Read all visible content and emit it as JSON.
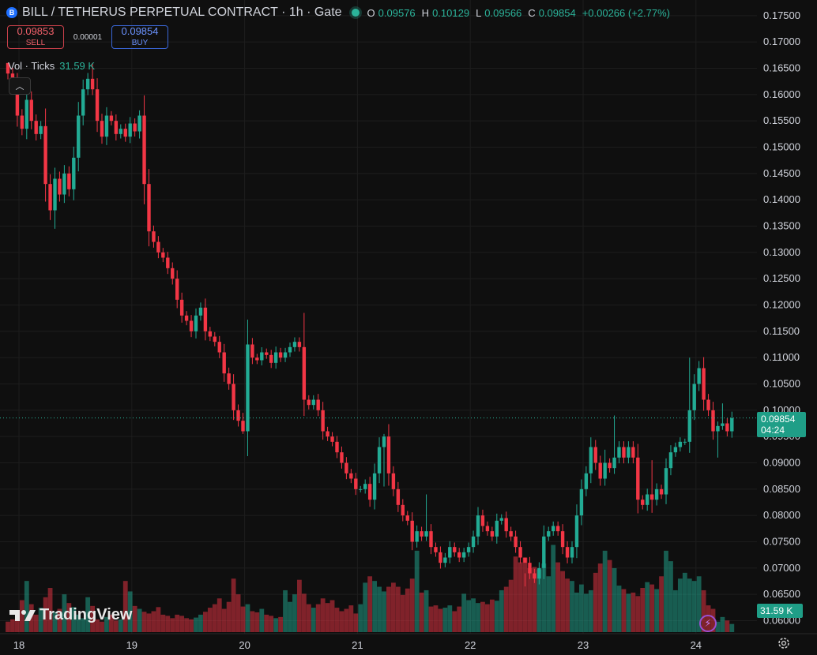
{
  "header": {
    "symbol_icon": "B",
    "title": "BILL / TETHERUS PERPETUAL CONTRACT · 1h · Gate",
    "ohlc": [
      {
        "key": "O",
        "value": "0.09576"
      },
      {
        "key": "H",
        "value": "0.10129"
      },
      {
        "key": "L",
        "value": "0.09566"
      },
      {
        "key": "C",
        "value": "0.09854"
      }
    ],
    "change": "+0.00266 (+2.77%)"
  },
  "trade": {
    "sell_price": "0.09853",
    "sell_label": "SELL",
    "spread": "0.00001",
    "buy_price": "0.09854",
    "buy_label": "BUY"
  },
  "volume_legend": {
    "label": "Vol · Ticks",
    "value": "31.59 K"
  },
  "last_price": {
    "price": "0.09854",
    "countdown": "04:24",
    "volume_tag": "31.59 K"
  },
  "logo_text": "TradingView",
  "colors": {
    "up": "#22ab94",
    "down": "#f23645",
    "background": "#0f0f0f",
    "grid": "#1d1d1d"
  },
  "chart_data": {
    "type": "candlestick",
    "symbol": "BILL / TETHERUS PERPETUAL CONTRACT",
    "interval": "1h",
    "exchange": "Gate",
    "x_ticks": [
      {
        "label": "18",
        "bar": 0
      },
      {
        "label": "19",
        "bar": 24
      },
      {
        "label": "20",
        "bar": 48
      },
      {
        "label": "21",
        "bar": 72
      },
      {
        "label": "22",
        "bar": 96
      },
      {
        "label": "23",
        "bar": 120
      },
      {
        "label": "24",
        "bar": 144
      }
    ],
    "y_ticks": [
      "0.06000",
      "0.06500",
      "0.07000",
      "0.07500",
      "0.08000",
      "0.08500",
      "0.09000",
      "0.09500",
      "0.10000",
      "0.10500",
      "0.11000",
      "0.11500",
      "0.12000",
      "0.12500",
      "0.13000",
      "0.13500",
      "0.14000",
      "0.14500",
      "0.15000",
      "0.15500",
      "0.16000",
      "0.16500",
      "0.17000",
      "0.17500"
    ],
    "ylim": [
      0.06,
      0.175
    ],
    "grid": true,
    "close": [
      0.164,
      0.162,
      0.156,
      0.1535,
      0.159,
      0.155,
      0.1525,
      0.154,
      0.143,
      0.138,
      0.144,
      0.141,
      0.145,
      0.142,
      0.148,
      0.156,
      0.161,
      0.163,
      0.161,
      0.155,
      0.152,
      0.156,
      0.155,
      0.1525,
      0.1535,
      0.152,
      0.1545,
      0.153,
      0.156,
      0.143,
      0.134,
      0.132,
      0.13,
      0.129,
      0.127,
      0.125,
      0.121,
      0.118,
      0.117,
      0.115,
      0.118,
      0.1195,
      0.115,
      0.114,
      0.113,
      0.111,
      0.107,
      0.105,
      0.1,
      0.098,
      0.096,
      0.1125,
      0.11,
      0.1095,
      0.111,
      0.1105,
      0.109,
      0.111,
      0.11,
      0.111,
      0.112,
      0.113,
      0.112,
      0.102,
      0.101,
      0.102,
      0.1,
      0.096,
      0.095,
      0.094,
      0.092,
      0.09,
      0.088,
      0.087,
      0.085,
      0.085,
      0.086,
      0.083,
      0.088,
      0.093,
      0.095,
      0.088,
      0.085,
      0.082,
      0.08,
      0.079,
      0.075,
      0.077,
      0.076,
      0.077,
      0.074,
      0.073,
      0.071,
      0.072,
      0.074,
      0.073,
      0.072,
      0.073,
      0.074,
      0.076,
      0.08,
      0.078,
      0.077,
      0.076,
      0.079,
      0.0795,
      0.077,
      0.076,
      0.074,
      0.072,
      0.071,
      0.069,
      0.068,
      0.07,
      0.076,
      0.077,
      0.078,
      0.077,
      0.074,
      0.072,
      0.074,
      0.08,
      0.085,
      0.088,
      0.093,
      0.09,
      0.087,
      0.09,
      0.089,
      0.091,
      0.093,
      0.091,
      0.093,
      0.091,
      0.083,
      0.082,
      0.084,
      0.083,
      0.085,
      0.084,
      0.089,
      0.092,
      0.093,
      0.094,
      0.094,
      0.1,
      0.105,
      0.108,
      0.102,
      0.1,
      0.096,
      0.097,
      0.0975,
      0.096,
      0.0985
    ],
    "wick_highs": {
      "0": 0.166,
      "18": 0.166,
      "28": 0.157,
      "50": 0.0995,
      "63": 0.1185,
      "80": 0.0955,
      "89": 0.084,
      "110": 0.069,
      "127": 0.0925,
      "129": 0.099,
      "137": 0.0905,
      "145": 0.11,
      "152": 0.1013
    },
    "wick_lows": {
      "10": 0.1345,
      "50": 0.0955,
      "80": 0.0855,
      "110": 0.0665,
      "137": 0.0805,
      "151": 0.091
    },
    "volume_pct": [
      0.18,
      0.22,
      0.3,
      0.55,
      0.88,
      0.48,
      0.3,
      0.42,
      0.6,
      0.76,
      0.35,
      0.4,
      0.65,
      0.5,
      0.43,
      0.3,
      0.24,
      0.6,
      0.45,
      0.22,
      0.18,
      0.26,
      0.3,
      0.2,
      0.22,
      0.88,
      0.7,
      0.45,
      0.4,
      0.35,
      0.32,
      0.36,
      0.43,
      0.3,
      0.28,
      0.24,
      0.3,
      0.28,
      0.24,
      0.22,
      0.25,
      0.3,
      0.35,
      0.42,
      0.48,
      0.58,
      0.4,
      0.52,
      0.92,
      0.65,
      0.44,
      0.48,
      0.36,
      0.34,
      0.4,
      0.3,
      0.28,
      0.24,
      0.26,
      0.72,
      0.52,
      0.65,
      0.9,
      0.66,
      0.48,
      0.42,
      0.48,
      0.58,
      0.5,
      0.55,
      0.42,
      0.36,
      0.4,
      0.46,
      0.32,
      0.48,
      0.85,
      0.96,
      0.88,
      0.78,
      0.7,
      0.78,
      0.85,
      0.78,
      0.64,
      0.75,
      0.92,
      1.4,
      0.68,
      0.72,
      0.44,
      0.46,
      0.4,
      0.42,
      0.46,
      0.36,
      0.44,
      0.66,
      0.55,
      0.58,
      0.5,
      0.52,
      0.48,
      0.56,
      0.54,
      0.72,
      0.78,
      0.9,
      1.3,
      1.2,
      1.28,
      1.1,
      1.12,
      1.08,
      1.18,
      0.96,
      1.5,
      1.2,
      1.05,
      0.92,
      0.88,
      0.68,
      0.82,
      0.66,
      0.72,
      1.02,
      1.18,
      1.4,
      1.24,
      1.1,
      0.8,
      0.74,
      0.66,
      0.68,
      0.62,
      0.76,
      0.86,
      0.82,
      0.74,
      0.96,
      1.4,
      1.22,
      0.72,
      0.92,
      1.02,
      0.92,
      0.88,
      0.96,
      0.72,
      0.46,
      0.4,
      0.18,
      0.26,
      0.2,
      0.14
    ]
  }
}
